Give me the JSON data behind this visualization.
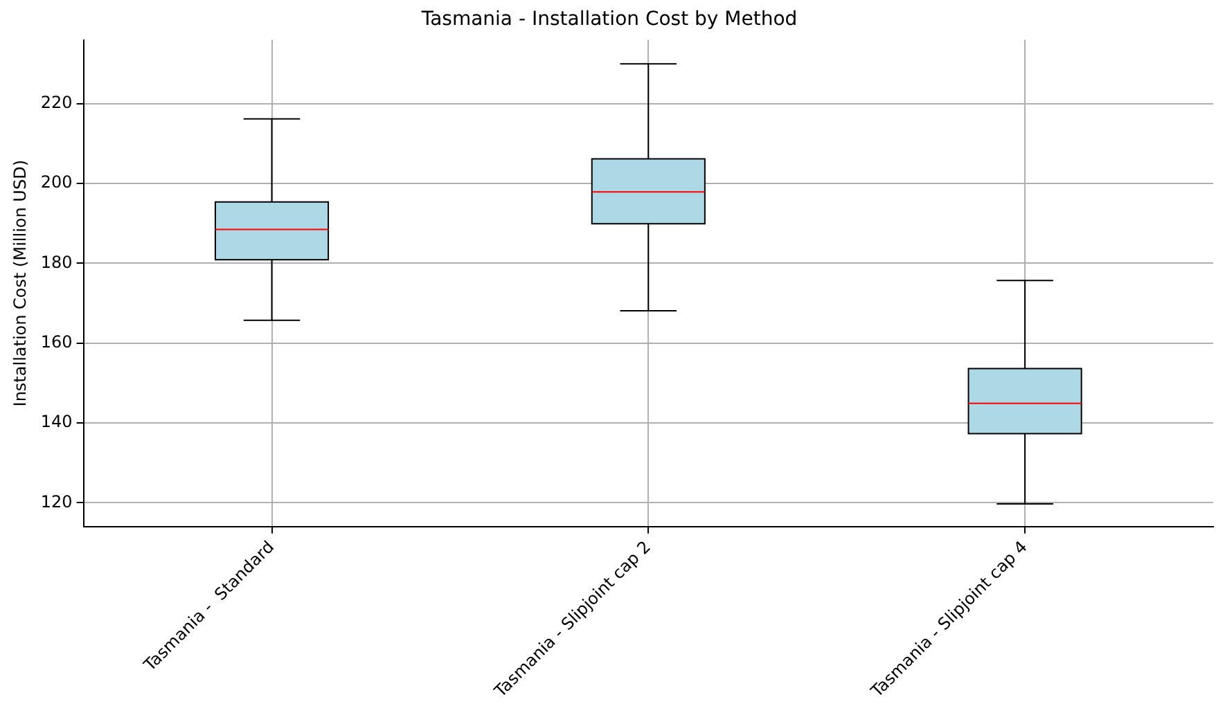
{
  "chart_data": {
    "type": "box",
    "title": "Tasmania - Installation Cost by Method",
    "ylabel": "Installation Cost (Million USD)",
    "categories": [
      "Tasmania -  Standard",
      "Tasmania - Slipjoint cap 2",
      "Tasmania - Slipjoint cap 4"
    ],
    "series": [
      {
        "color": "#add8e6",
        "boxes": [
          {
            "low": 165.7,
            "q1": 180.9,
            "median": 188.5,
            "q3": 195.4,
            "high": 216.2
          },
          {
            "low": 168.1,
            "q1": 189.9,
            "median": 197.9,
            "q3": 206.2,
            "high": 230.0
          },
          {
            "low": 119.7,
            "q1": 137.3,
            "median": 144.9,
            "q3": 153.6,
            "high": 175.7
          }
        ]
      }
    ],
    "ylim": [
      114,
      236
    ],
    "yticks": [
      120,
      140,
      160,
      180,
      200,
      220
    ],
    "grid": true
  }
}
